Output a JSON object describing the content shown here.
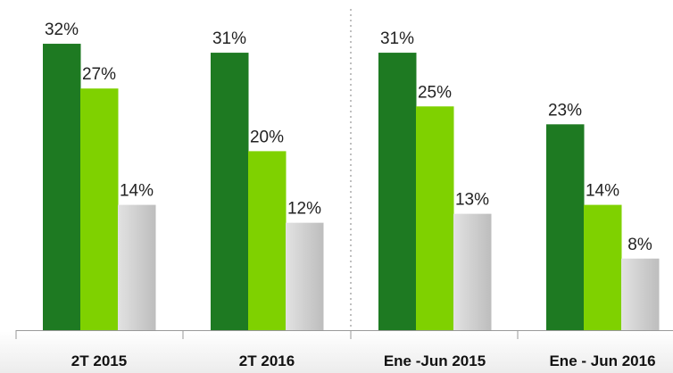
{
  "chart_data": {
    "type": "bar",
    "categories": [
      "2T 2015",
      "2T 2016",
      "Ene -Jun 2015",
      "Ene - Jun 2016"
    ],
    "series": [
      {
        "color": "#1e7a22",
        "values": [
          32,
          31,
          31,
          23
        ],
        "value_labels": [
          "32%",
          "31%",
          "31%",
          "23%"
        ]
      },
      {
        "color": "#7fd100",
        "values": [
          27,
          20,
          25,
          14
        ],
        "value_labels": [
          "27%",
          "20%",
          "25%",
          "14%"
        ]
      },
      {
        "color": "#cfcfcf",
        "values": [
          14,
          12,
          13,
          8
        ],
        "value_labels": [
          "14%",
          "12%",
          "13%",
          "8%"
        ]
      }
    ]
  }
}
